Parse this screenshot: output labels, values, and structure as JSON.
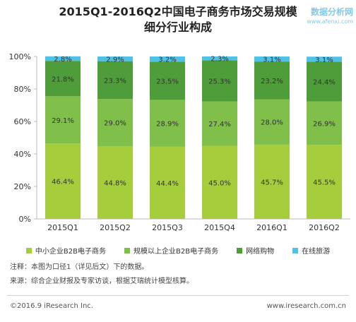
{
  "title_line1": "2015Q1-2016Q2中国电子商务市场交易规模",
  "title_line2": "细分行业构成",
  "watermark": {
    "main": "数据分析网",
    "sub": "www.afenxi.com"
  },
  "notes": {
    "note": "注释：本图为口径1（详见后文）下的数据。",
    "source": "来源：综合企业财报及专家访谈，根据艾瑞统计模型核算。"
  },
  "footer": {
    "copyright": "©2016.9 iResearch Inc.",
    "website": "www.iresearch.com.cn"
  },
  "chart_data": {
    "type": "bar",
    "stacked": true,
    "percent": true,
    "categories": [
      "2015Q1",
      "2015Q2",
      "2015Q3",
      "2015Q4",
      "2016Q1",
      "2016Q2"
    ],
    "series": [
      {
        "name": "中小企业B2B电子商务",
        "color": "#a6cd3c",
        "values": [
          46.4,
          44.8,
          44.4,
          45.0,
          45.7,
          45.5
        ]
      },
      {
        "name": "规模以上企业B2B电子商务",
        "color": "#7fbf4a",
        "values": [
          29.1,
          29.0,
          28.9,
          27.4,
          28.0,
          26.9
        ]
      },
      {
        "name": "网络购物",
        "color": "#4f9d3a",
        "values": [
          21.8,
          23.3,
          23.5,
          25.3,
          23.2,
          24.4
        ]
      },
      {
        "name": "在线旅游",
        "color": "#4ec1e4",
        "values": [
          2.8,
          2.9,
          3.2,
          2.3,
          3.1,
          3.1
        ]
      }
    ],
    "yticks": [
      "0%",
      "20%",
      "40%",
      "60%",
      "80%",
      "100%"
    ],
    "ylim": [
      0,
      100
    ],
    "legend_position": "bottom",
    "grid": false
  }
}
